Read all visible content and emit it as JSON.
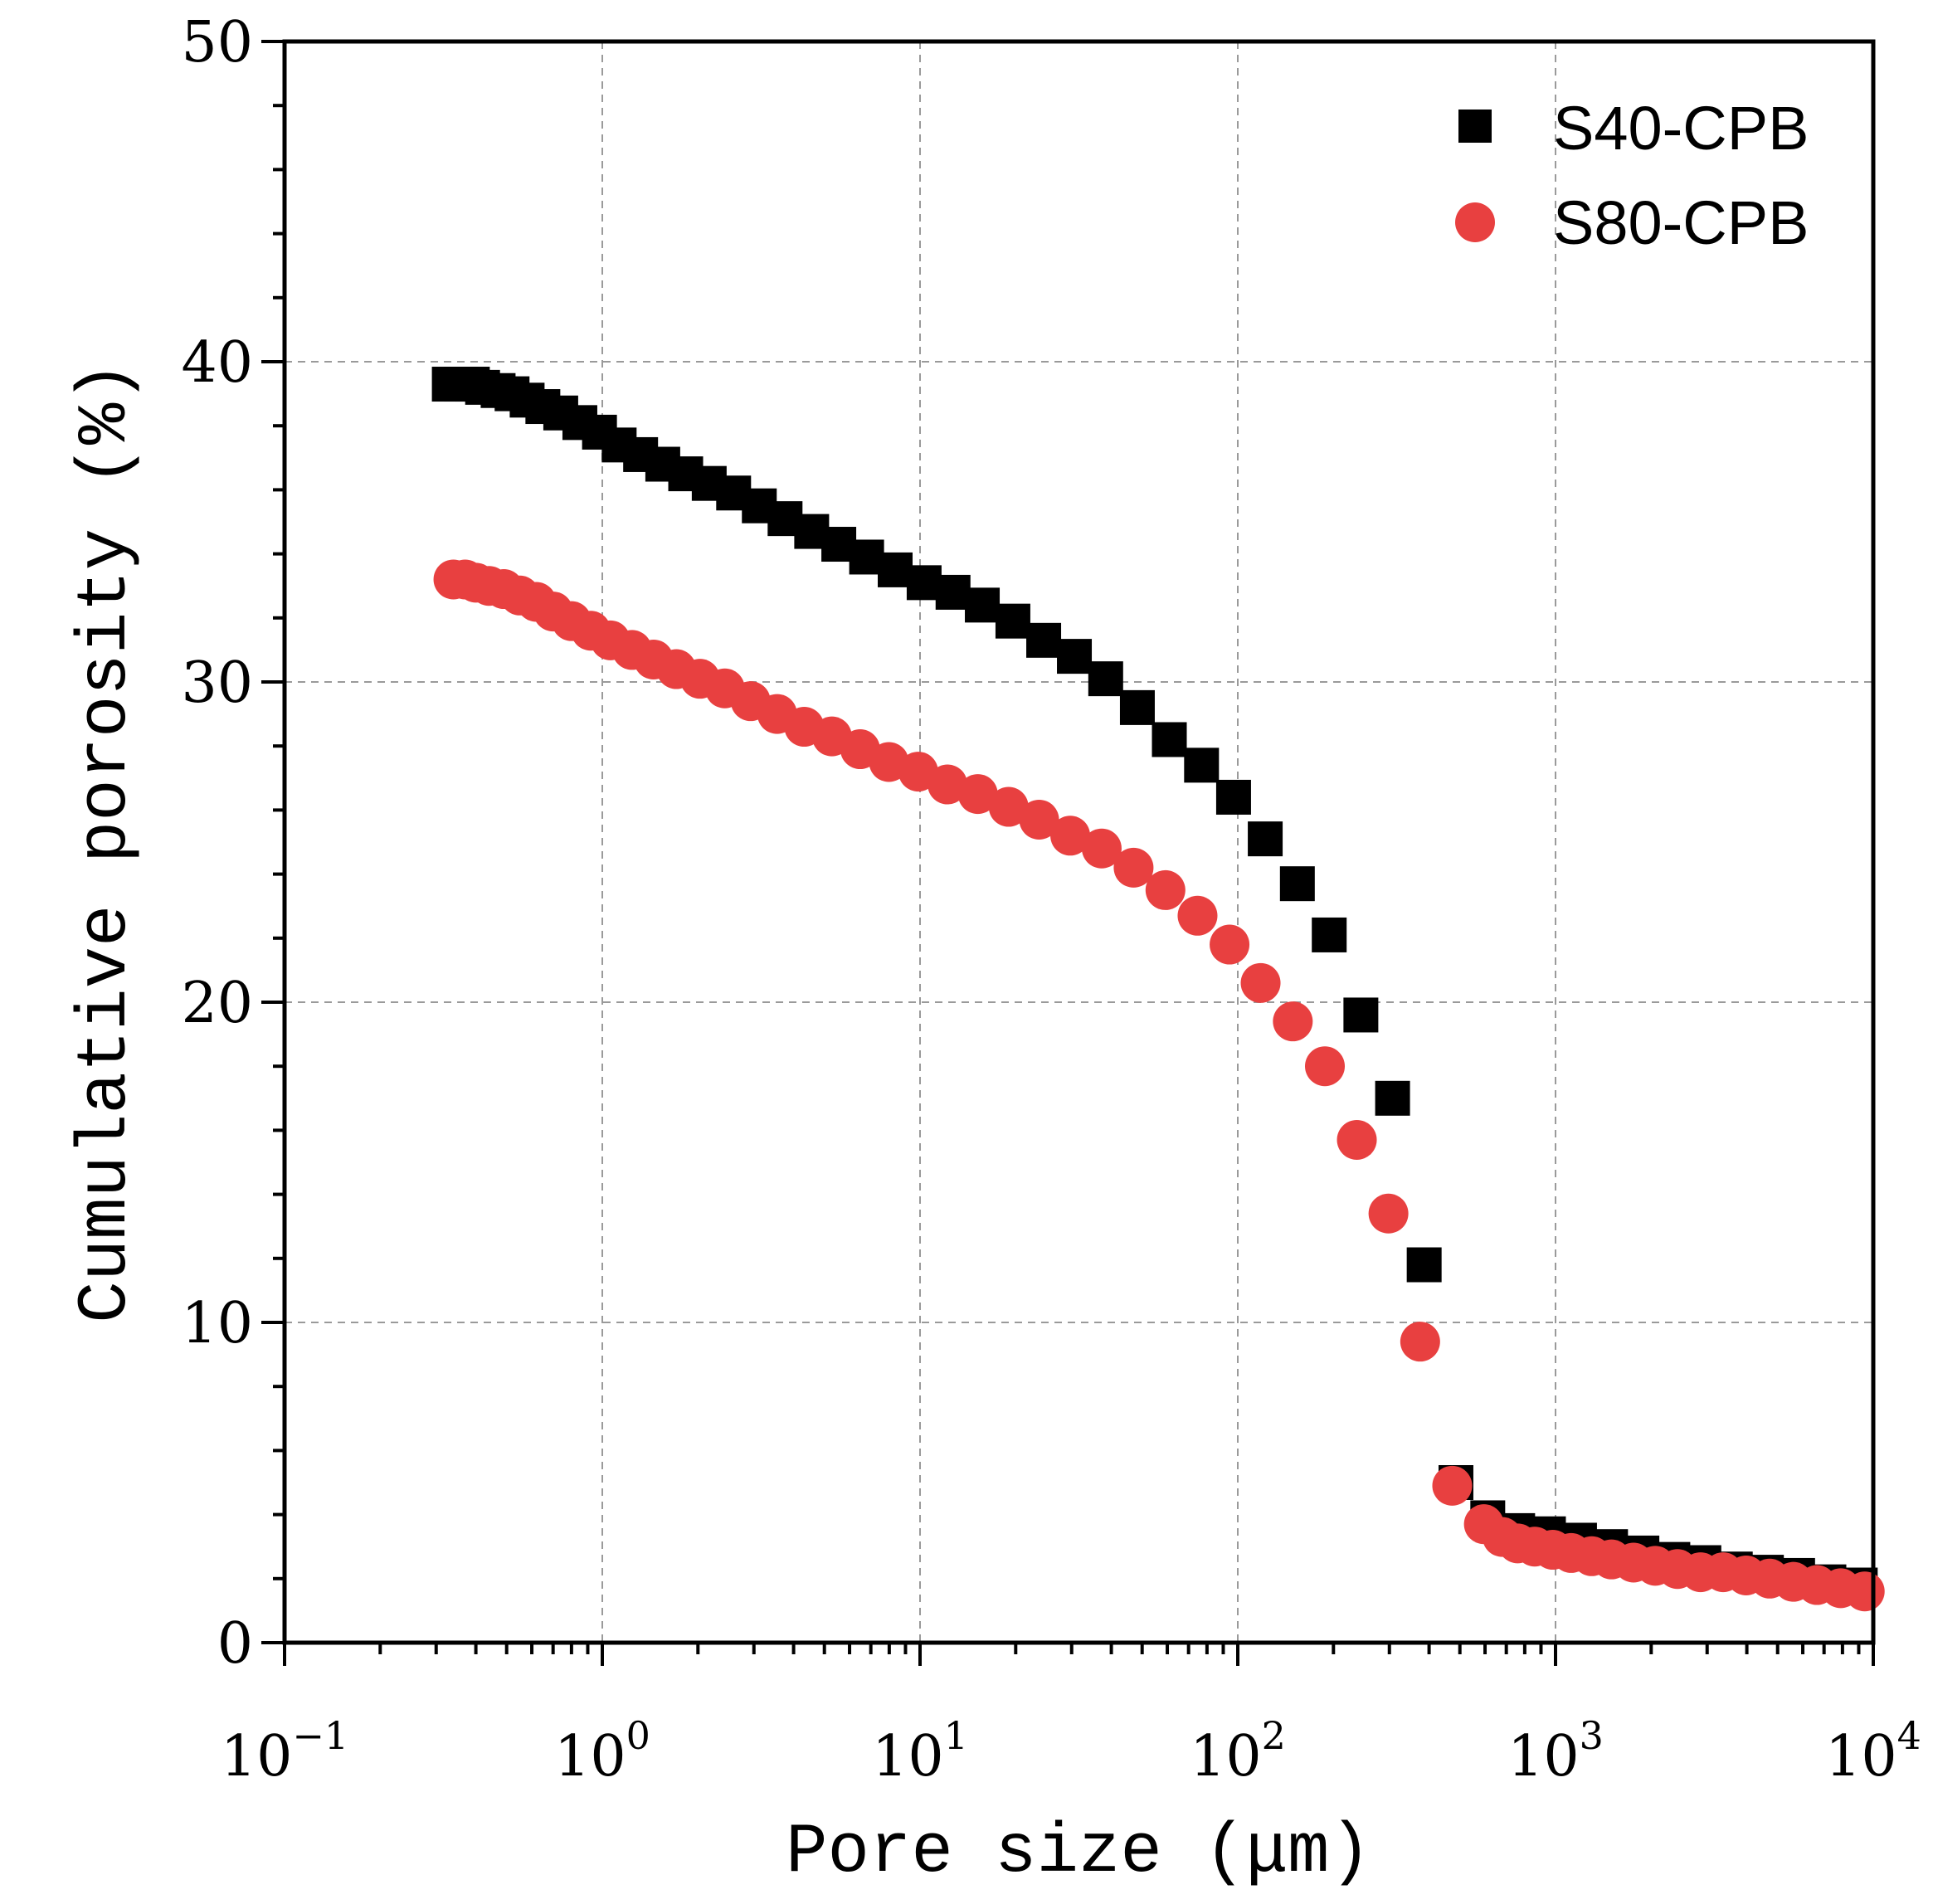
{
  "chart_data": {
    "type": "scatter",
    "title": "",
    "xlabel": "Pore size (μm)",
    "ylabel": "Cumulative porosity (%)",
    "xscale": "log",
    "xlim": [
      0.1,
      10000
    ],
    "ylim": [
      0,
      50
    ],
    "grid": true,
    "legend_position": "top-right",
    "xticks": [
      {
        "value": 0.1,
        "base": "10",
        "exp": "−1"
      },
      {
        "value": 1,
        "base": "10",
        "exp": "0"
      },
      {
        "value": 10,
        "base": "10",
        "exp": "1"
      },
      {
        "value": 100,
        "base": "10",
        "exp": "2"
      },
      {
        "value": 1000,
        "base": "10",
        "exp": "3"
      },
      {
        "value": 10000,
        "base": "10",
        "exp": "4"
      }
    ],
    "yticks": [
      0,
      10,
      20,
      30,
      40,
      50
    ],
    "series": [
      {
        "name": "S40-CPB",
        "marker": "square",
        "color": "#000000",
        "x": [
          0.33,
          0.36,
          0.39,
          0.42,
          0.47,
          0.52,
          0.58,
          0.65,
          0.74,
          0.85,
          0.98,
          1.13,
          1.32,
          1.55,
          1.83,
          2.17,
          2.59,
          3.12,
          3.76,
          4.56,
          5.55,
          6.79,
          8.35,
          10.3,
          12.7,
          15.7,
          19.6,
          24.5,
          30.6,
          38.4,
          48.3,
          60.9,
          76.9,
          97,
          122,
          154,
          194,
          244,
          307,
          386,
          486,
          612,
          760,
          950,
          1190,
          1490,
          1870,
          2340,
          2930,
          3680,
          4610,
          5780,
          7250,
          9100
        ],
        "y": [
          39.3,
          39.3,
          39.3,
          39.2,
          39.1,
          39.0,
          38.8,
          38.6,
          38.4,
          38.1,
          37.8,
          37.4,
          37.1,
          36.8,
          36.5,
          36.2,
          35.9,
          35.5,
          35.1,
          34.7,
          34.3,
          33.9,
          33.5,
          33.1,
          32.8,
          32.4,
          31.9,
          31.3,
          30.8,
          30.1,
          29.2,
          28.2,
          27.4,
          26.4,
          25.1,
          23.7,
          22.1,
          19.6,
          17.0,
          11.8,
          5.0,
          3.9,
          3.5,
          3.4,
          3.2,
          3.0,
          2.8,
          2.6,
          2.5,
          2.3,
          2.2,
          2.1,
          1.9,
          1.8
        ]
      },
      {
        "name": "S80-CPB",
        "marker": "circle",
        "color": "#e84040",
        "x": [
          0.34,
          0.37,
          0.4,
          0.44,
          0.49,
          0.55,
          0.62,
          0.7,
          0.8,
          0.92,
          1.06,
          1.24,
          1.45,
          1.71,
          2.03,
          2.43,
          2.93,
          3.55,
          4.32,
          5.28,
          6.48,
          7.98,
          9.87,
          12.2,
          15.2,
          19,
          23.7,
          29.7,
          37.3,
          47,
          59.2,
          74.7,
          94.2,
          118,
          149,
          188,
          237,
          298,
          375,
          473,
          595,
          680,
          760,
          860,
          980,
          1120,
          1300,
          1500,
          1760,
          2060,
          2420,
          2860,
          3370,
          3980,
          4720,
          5600,
          6650,
          7900,
          9400
        ],
        "y": [
          33.2,
          33.2,
          33.1,
          33.0,
          32.9,
          32.7,
          32.5,
          32.2,
          31.9,
          31.6,
          31.3,
          31.0,
          30.7,
          30.4,
          30.1,
          29.8,
          29.4,
          29.0,
          28.6,
          28.3,
          27.9,
          27.5,
          27.2,
          26.8,
          26.5,
          26.1,
          25.7,
          25.2,
          24.8,
          24.2,
          23.5,
          22.7,
          21.8,
          20.6,
          19.4,
          18.0,
          15.7,
          13.4,
          9.4,
          4.9,
          3.7,
          3.3,
          3.1,
          3.0,
          2.9,
          2.8,
          2.7,
          2.6,
          2.5,
          2.4,
          2.3,
          2.2,
          2.2,
          2.1,
          2.0,
          1.9,
          1.8,
          1.7,
          1.6
        ]
      }
    ]
  }
}
